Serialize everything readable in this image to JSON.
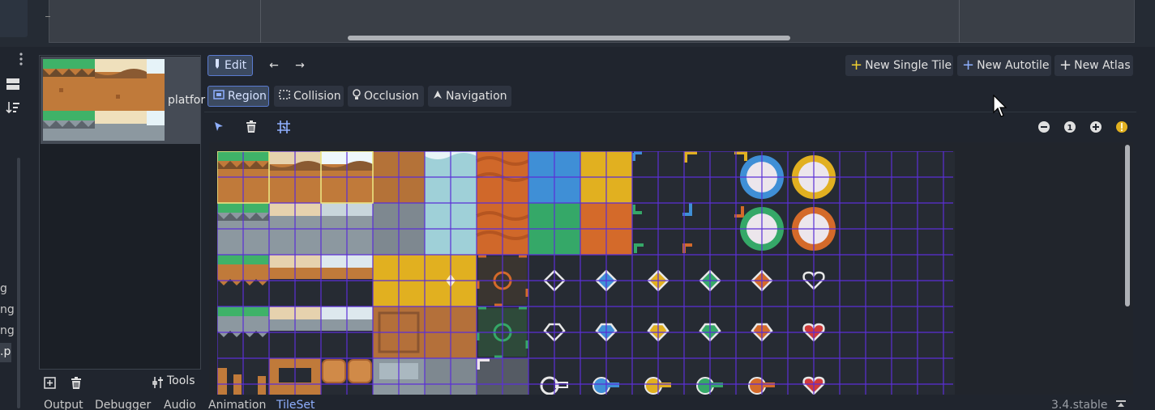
{
  "left_dock": {
    "texts": [
      "g",
      "ng",
      "ng"
    ],
    "selected_text": ".p"
  },
  "tileset_list": {
    "item_name": "platfor",
    "tools_label": "Tools"
  },
  "toolbar": {
    "edit_label": "Edit",
    "prev_label": "←",
    "next_label": "→",
    "new_single_tile": "New Single Tile",
    "new_autotile": "New Autotile",
    "new_atlas": "New Atlas"
  },
  "modes": {
    "region": "Region",
    "collision": "Collision",
    "occlusion": "Occlusion",
    "navigation": "Navigation"
  },
  "zoom": {
    "reset_label": "1"
  },
  "bottom_tabs": [
    "Output",
    "Debugger",
    "Audio",
    "Animation",
    "TileSet"
  ],
  "active_bottom_tab": "TileSet",
  "version": "3.4.stable",
  "colors": {
    "accent": "#8fb0ff",
    "grid": "#5b2fd6",
    "selection": "#f5f07a",
    "grass": "#3fb268",
    "dirt": "#c07a3a",
    "sand": "#e6d2ae",
    "stone": "#8c98a0",
    "water": "#9fd0d8",
    "lava": "#d0682a",
    "blue": "#3f8fd6",
    "green": "#35a868",
    "yellow": "#e1b020",
    "orange": "#d46a2a"
  }
}
